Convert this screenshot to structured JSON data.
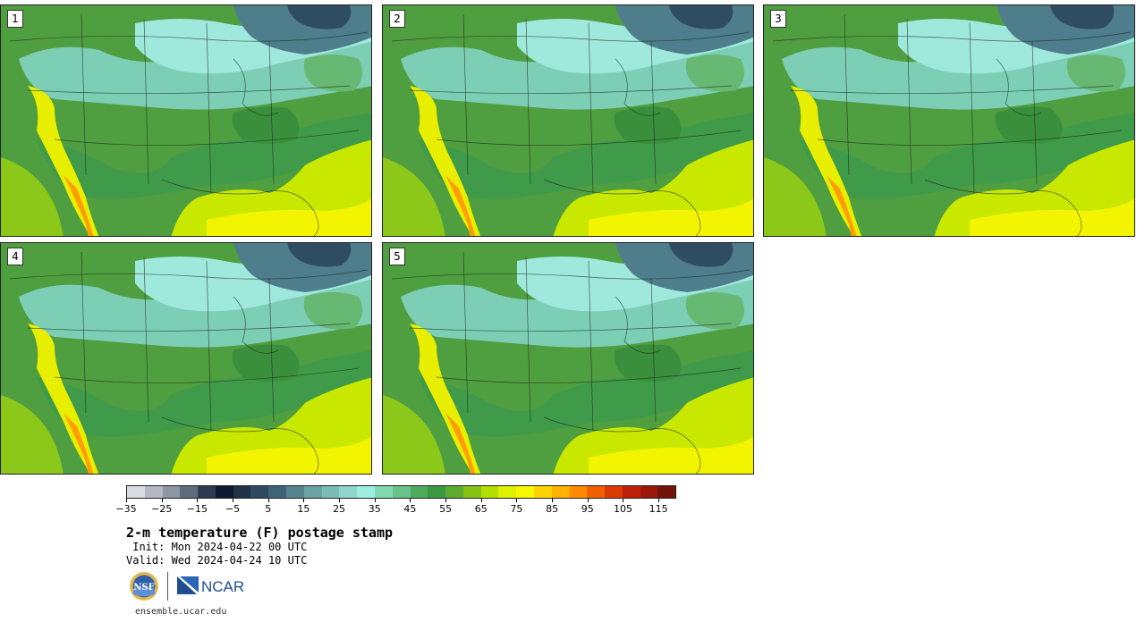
{
  "panels": [
    {
      "label": "1"
    },
    {
      "label": "2"
    },
    {
      "label": "3"
    },
    {
      "label": "4"
    },
    {
      "label": "5"
    }
  ],
  "colorbar": {
    "colors": [
      "#d8dbe2",
      "#b3b8c2",
      "#8c95a2",
      "#5f6c7c",
      "#2e3a52",
      "#0d1a2e",
      "#1f3347",
      "#2f4a60",
      "#3e6376",
      "#55848f",
      "#6aa2a5",
      "#7cbcb8",
      "#8fd6cc",
      "#9deee0",
      "#83d9ae",
      "#68c38a",
      "#4eaa5c",
      "#3b9841",
      "#5cab2f",
      "#86c414",
      "#b4dd00",
      "#dcf200",
      "#f7f700",
      "#ffd400",
      "#ffb000",
      "#ff8a00",
      "#f06000",
      "#db3a05",
      "#bf2008",
      "#9b170b",
      "#72120a"
    ],
    "ticks": [
      "−35",
      "−25",
      "−15",
      "−5",
      "5",
      "15",
      "25",
      "35",
      "45",
      "55",
      "65",
      "75",
      "85",
      "95",
      "105",
      "115"
    ]
  },
  "title": "2-m temperature (F) postage stamp",
  "init": " Init: Mon 2024-04-22 00 UTC",
  "valid": "Valid: Wed 2024-04-24 10 UTC",
  "logos": {
    "left": "NSF",
    "right": "NCAR"
  },
  "site": "ensemble.ucar.edu"
}
